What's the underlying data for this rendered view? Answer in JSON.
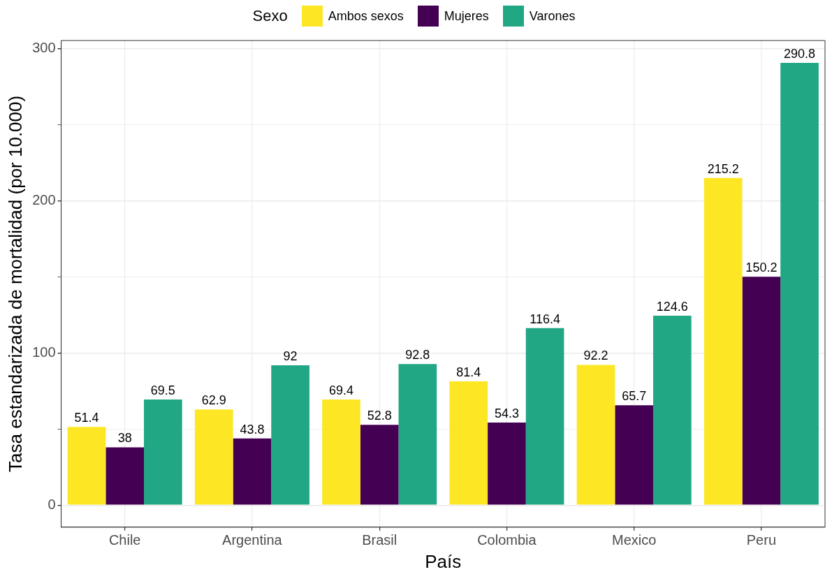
{
  "chart_data": {
    "type": "bar",
    "xlabel": "País",
    "ylabel": "Tasa estandarizada de mortalidad (por 10.000)",
    "legend_title": "Sexo",
    "legend": "top",
    "categories": [
      "Chile",
      "Argentina",
      "Brasil",
      "Colombia",
      "Mexico",
      "Peru"
    ],
    "series": [
      {
        "name": "Ambos sexos",
        "color": "#fde725",
        "values": [
          51.4,
          62.9,
          69.4,
          81.4,
          92.2,
          215.2
        ]
      },
      {
        "name": "Mujeres",
        "color": "#440154",
        "values": [
          38,
          43.8,
          52.8,
          54.3,
          65.7,
          150.2
        ]
      },
      {
        "name": "Varones",
        "color": "#21a784",
        "values": [
          69.5,
          92,
          92.8,
          116.4,
          124.6,
          290.8
        ]
      }
    ],
    "ylim": [
      -14.5,
      305.5
    ],
    "yticks": [
      0,
      {
        "value": 50,
        "label": null
      },
      100,
      {
        "value": 150,
        "label": null
      },
      200,
      {
        "value": 250,
        "label": null
      },
      300
    ],
    "grid": true,
    "data_labels": true
  }
}
